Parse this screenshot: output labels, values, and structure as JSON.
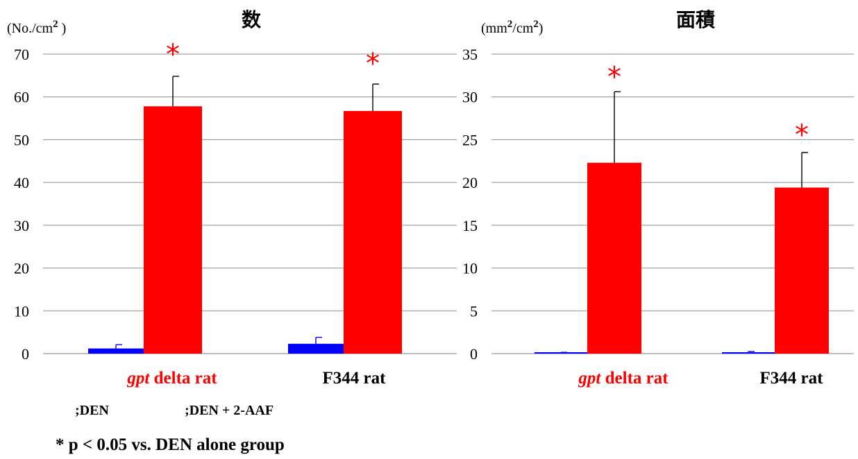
{
  "chart_data": [
    {
      "type": "bar",
      "title": "数",
      "unit_label": "(No./cm2 )",
      "unit_base": "(No./cm",
      "unit_sup": "2",
      "unit_tail": " )",
      "categories": [
        {
          "italic": "gpt",
          "rest": " delta rat",
          "color": "#ff0000"
        },
        {
          "italic": "",
          "rest": "F344 rat",
          "color": "#000000"
        }
      ],
      "series": [
        {
          "name": "DEN",
          "color": "#0000ff",
          "values": [
            1.2,
            2.3
          ],
          "errors": [
            0.9,
            1.5
          ]
        },
        {
          "name": "DEN + 2-AAF",
          "color": "#ff0000",
          "values": [
            57.8,
            56.7
          ],
          "errors": [
            7.0,
            6.3
          ]
        }
      ],
      "significance": [
        "*",
        "*"
      ],
      "ylim": [
        0,
        70
      ],
      "yticks": [
        0,
        10,
        20,
        30,
        40,
        50,
        60,
        70
      ],
      "grid": true
    },
    {
      "type": "bar",
      "title": "面積",
      "unit_label": "(mm2/cm2)",
      "unit_base": "(mm",
      "unit_sup": "2",
      "unit_mid": "/cm",
      "unit_sup2": "2",
      "unit_tail": ")",
      "categories": [
        {
          "italic": "gpt",
          "rest": " delta rat",
          "color": "#ff0000"
        },
        {
          "italic": "",
          "rest": "F344 rat",
          "color": "#000000"
        }
      ],
      "series": [
        {
          "name": "DEN",
          "color": "#0000ff",
          "values": [
            0.1,
            0.15
          ],
          "errors": [
            0.05,
            0.1
          ]
        },
        {
          "name": "DEN + 2-AAF",
          "color": "#ff0000",
          "values": [
            22.3,
            19.4
          ],
          "errors": [
            8.3,
            4.1
          ]
        }
      ],
      "significance": [
        "*",
        "*"
      ],
      "ylim": [
        0,
        35
      ],
      "yticks": [
        0,
        5,
        10,
        15,
        20,
        25,
        30,
        35
      ],
      "grid": true
    }
  ],
  "legend": [
    {
      "label": ";DEN",
      "color": "#0000ff"
    },
    {
      "label": ";DEN + 2-AAF",
      "color": "#ff0000"
    }
  ],
  "footnote": "* p < 0.05 vs. DEN alone group"
}
